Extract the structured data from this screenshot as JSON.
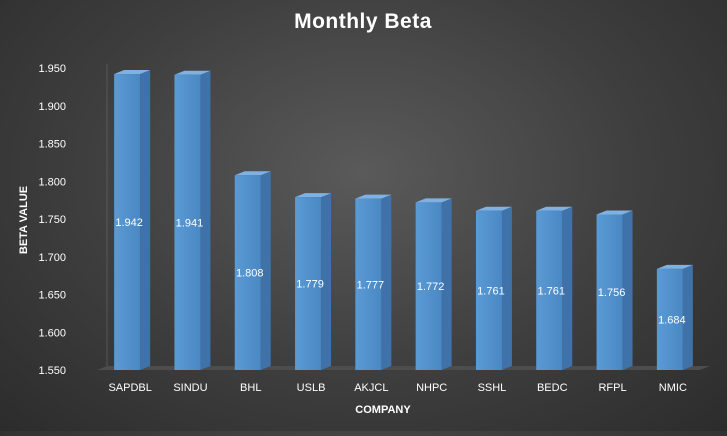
{
  "chart_data": {
    "type": "bar",
    "title": "Monthly Beta",
    "xlabel": "COMPANY",
    "ylabel": "BETA VALUE",
    "categories": [
      "SAPDBL",
      "SINDU",
      "BHL",
      "USLB",
      "AKJCL",
      "NHPC",
      "SSHL",
      "BEDC",
      "RFPL",
      "NMIC"
    ],
    "values": [
      1.942,
      1.941,
      1.808,
      1.779,
      1.777,
      1.772,
      1.761,
      1.761,
      1.756,
      1.684
    ],
    "data_labels": [
      "1.942",
      "1.941",
      "1.808",
      "1.779",
      "1.777",
      "1.772",
      "1.761",
      "1.761",
      "1.756",
      "1.684"
    ],
    "ylim": [
      1.55,
      1.95
    ],
    "yticks": [
      "1.550",
      "1.600",
      "1.650",
      "1.700",
      "1.750",
      "1.800",
      "1.850",
      "1.900",
      "1.950"
    ],
    "grid": false,
    "legend": "none",
    "three_d": true,
    "colors": {
      "bar_front": "#5b9bd5",
      "bar_front_dark": "#4a88c4",
      "bar_side": "#3f72a8",
      "bar_top": "#7fb2e3",
      "floor": "#4d4d4d",
      "wall_line": "#6a6a6a",
      "text": "#ffffff"
    }
  }
}
